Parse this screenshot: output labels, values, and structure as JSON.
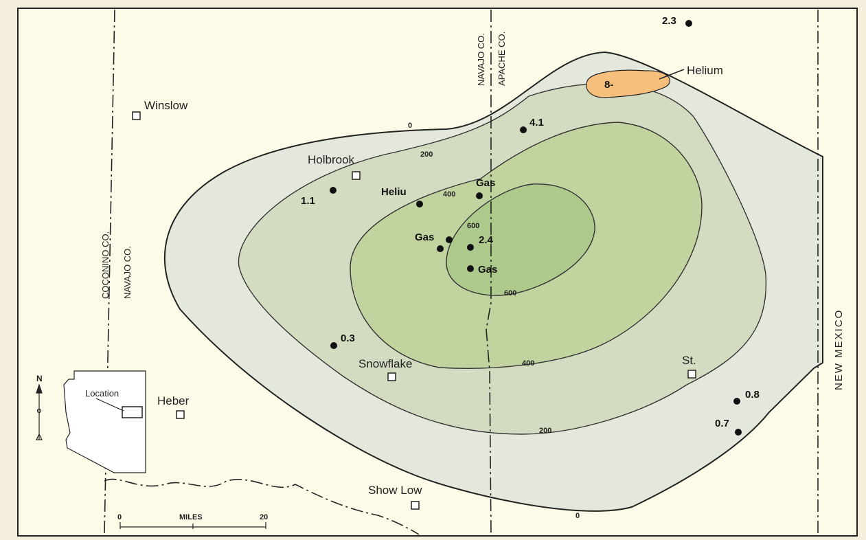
{
  "counties": {
    "coconino": "COCONINO CO.",
    "navajo_west": "NAVAJO CO.",
    "navajo_east": "NAVAJO CO.",
    "apache": "APACHE CO."
  },
  "state_label": "NEW MEXICO",
  "towns": {
    "winslow": "Winslow",
    "holbrook": "Holbrook",
    "snowflake": "Snowflake",
    "heber": "Heber",
    "show_low": "Show Low",
    "st_johns": "St."
  },
  "contours": {
    "c0_north": "0",
    "c0_south": "0",
    "c200_north": "200",
    "c200_south": "200",
    "c400_north": "400",
    "c400_south": "400",
    "c600_north": "600",
    "c600_south": "600"
  },
  "wells": {
    "w1": "2.3",
    "w2": "4.1",
    "w3": "1.1",
    "w4": "Heliu",
    "w5": "Gas",
    "w6": "Gas",
    "w7": "2.4",
    "w8": "Gas",
    "w9": "0.3",
    "w10": "0.8",
    "w11": "0.7"
  },
  "helium_area": {
    "label": "Helium",
    "value": "8-"
  },
  "inset": {
    "north": "N",
    "location": "Location"
  },
  "scale": {
    "title": "MILES",
    "start": "0",
    "end": "20"
  },
  "colors": {
    "background": "#fdfbe8",
    "zone_0": "#e4e8dc",
    "zone_200": "#d3dcc0",
    "zone_400": "#c1d4a0",
    "zone_600": "#adc98b",
    "helium": "#f7bf7c"
  }
}
